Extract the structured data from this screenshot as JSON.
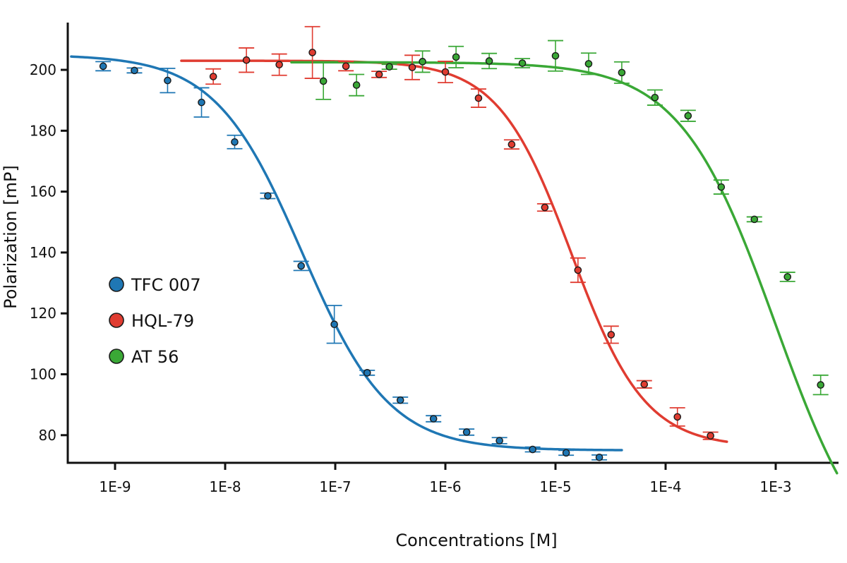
{
  "chart_data": {
    "type": "scatter",
    "title": "",
    "xlabel": "Concentrations [M]",
    "ylabel": "Polarization [mP]",
    "x_scale": "log",
    "xlim": [
      4e-10,
      0.004
    ],
    "ylim": [
      71,
      217
    ],
    "x_ticks": [
      1e-09,
      1e-08,
      1e-07,
      1e-06,
      1e-05,
      0.0001,
      0.001
    ],
    "x_tick_labels": [
      "1E-9",
      "1E-8",
      "1E-7",
      "1E-6",
      "1E-5",
      "1E-4",
      "1E-3"
    ],
    "y_ticks": [
      80,
      100,
      120,
      140,
      160,
      180,
      200
    ],
    "y_tick_labels": [
      "80",
      "100",
      "120",
      "140",
      "160",
      "180",
      "200"
    ],
    "grid": false,
    "legend_position": "left-middle",
    "series": [
      {
        "name": "TFC 007",
        "color": "#1f77b4",
        "points": [
          {
            "x": 7.8e-10,
            "y": 201.2,
            "err": 1.5
          },
          {
            "x": 1.5e-09,
            "y": 199.8,
            "err": 0.8
          },
          {
            "x": 3e-09,
            "y": 196.5,
            "err": 4.0
          },
          {
            "x": 6.1e-09,
            "y": 189.3,
            "err": 4.8
          },
          {
            "x": 1.22e-08,
            "y": 176.3,
            "err": 2.2
          },
          {
            "x": 2.44e-08,
            "y": 158.6,
            "err": 0.9
          },
          {
            "x": 4.9e-08,
            "y": 135.6,
            "err": 1.5
          },
          {
            "x": 9.8e-08,
            "y": 116.4,
            "err": 6.2
          },
          {
            "x": 1.95e-07,
            "y": 100.5,
            "err": 0.8
          },
          {
            "x": 3.9e-07,
            "y": 91.5,
            "err": 1.0
          },
          {
            "x": 7.8e-07,
            "y": 85.4,
            "err": 1.0
          },
          {
            "x": 1.56e-06,
            "y": 81.0,
            "err": 1.0
          },
          {
            "x": 3.1e-06,
            "y": 78.2,
            "err": 1.0
          },
          {
            "x": 6.2e-06,
            "y": 75.3,
            "err": 0.8
          },
          {
            "x": 1.25e-05,
            "y": 74.2,
            "err": 0.8
          },
          {
            "x": 2.5e-05,
            "y": 72.7,
            "err": 0.8
          }
        ],
        "fit": {
          "top": 205.0,
          "bottom": 75.0,
          "ic50": 5e-08,
          "hill": 1.1,
          "x_range": [
            4e-10,
            4e-05
          ]
        }
      },
      {
        "name": "HQL-79",
        "color": "#e03c31",
        "points": [
          {
            "x": 7.8e-09,
            "y": 197.8,
            "err": 2.5
          },
          {
            "x": 1.56e-08,
            "y": 203.2,
            "err": 4.0
          },
          {
            "x": 3.1e-08,
            "y": 201.7,
            "err": 3.5
          },
          {
            "x": 6.2e-08,
            "y": 205.7,
            "err": 8.5
          },
          {
            "x": 1.25e-07,
            "y": 201.2,
            "err": 1.5
          },
          {
            "x": 2.5e-07,
            "y": 198.5,
            "err": 1.0
          },
          {
            "x": 5e-07,
            "y": 200.8,
            "err": 4.0
          },
          {
            "x": 1e-06,
            "y": 199.3,
            "err": 3.5
          },
          {
            "x": 2e-06,
            "y": 190.7,
            "err": 3.0
          },
          {
            "x": 4e-06,
            "y": 175.5,
            "err": 1.5
          },
          {
            "x": 8e-06,
            "y": 154.8,
            "err": 1.2
          },
          {
            "x": 1.6e-05,
            "y": 134.2,
            "err": 4.0
          },
          {
            "x": 3.2e-05,
            "y": 113.0,
            "err": 2.8
          },
          {
            "x": 6.4e-05,
            "y": 96.7,
            "err": 1.2
          },
          {
            "x": 0.000128,
            "y": 86.0,
            "err": 3.0
          },
          {
            "x": 0.000256,
            "y": 79.8,
            "err": 1.2
          }
        ],
        "fit": {
          "top": 203.0,
          "bottom": 76.0,
          "ic50": 1.4e-05,
          "hill": 1.3,
          "x_range": [
            4e-09,
            0.00036
          ]
        }
      },
      {
        "name": "AT 56",
        "color": "#3aa836",
        "points": [
          {
            "x": 7.8e-08,
            "y": 196.3,
            "err": 6.0
          },
          {
            "x": 1.56e-07,
            "y": 195.0,
            "err": 3.5
          },
          {
            "x": 3.1e-07,
            "y": 201.0,
            "err": 0.8
          },
          {
            "x": 6.2e-07,
            "y": 202.7,
            "err": 3.5
          },
          {
            "x": 1.25e-06,
            "y": 204.2,
            "err": 3.5
          },
          {
            "x": 2.5e-06,
            "y": 202.9,
            "err": 2.5
          },
          {
            "x": 5e-06,
            "y": 202.2,
            "err": 1.5
          },
          {
            "x": 1e-05,
            "y": 204.6,
            "err": 5.0
          },
          {
            "x": 2e-05,
            "y": 202.0,
            "err": 3.5
          },
          {
            "x": 4e-05,
            "y": 199.1,
            "err": 3.5
          },
          {
            "x": 8e-05,
            "y": 190.9,
            "err": 2.5
          },
          {
            "x": 0.00016,
            "y": 184.9,
            "err": 1.8
          },
          {
            "x": 0.00032,
            "y": 161.5,
            "err": 2.3
          },
          {
            "x": 0.00064,
            "y": 150.9,
            "err": 0.8
          },
          {
            "x": 0.00128,
            "y": 132.0,
            "err": 1.5
          },
          {
            "x": 0.00256,
            "y": 96.5,
            "err": 3.2
          }
        ],
        "fit": {
          "top": 202.5,
          "bottom": 30.0,
          "ic50": 0.001,
          "hill": 1.0,
          "x_range": [
            4e-08,
            0.0036
          ]
        }
      }
    ]
  }
}
